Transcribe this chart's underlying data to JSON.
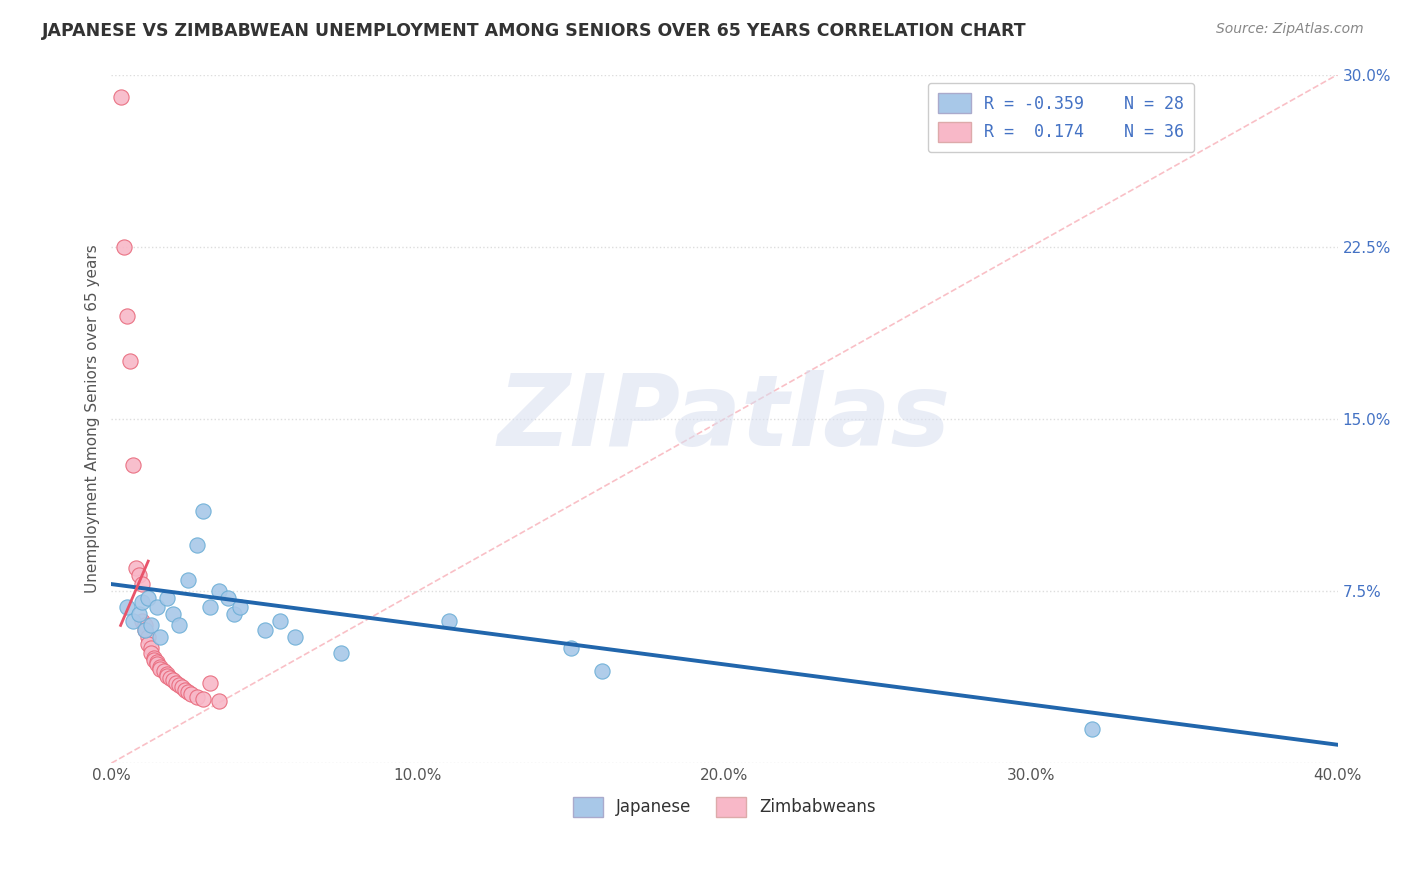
{
  "title": "JAPANESE VS ZIMBABWEAN UNEMPLOYMENT AMONG SENIORS OVER 65 YEARS CORRELATION CHART",
  "source": "Source: ZipAtlas.com",
  "ylabel": "Unemployment Among Seniors over 65 years",
  "xlim": [
    0.0,
    0.4
  ],
  "ylim": [
    0.0,
    0.3
  ],
  "xticks": [
    0.0,
    0.05,
    0.1,
    0.15,
    0.2,
    0.25,
    0.3,
    0.35,
    0.4
  ],
  "xticklabels_show": [
    0.0,
    0.1,
    0.2,
    0.3,
    0.4
  ],
  "yticks": [
    0.0,
    0.075,
    0.15,
    0.225,
    0.3
  ],
  "yticklabels": [
    "",
    "7.5%",
    "15.0%",
    "22.5%",
    "30.0%"
  ],
  "japanese_color": "#a8c8e8",
  "japanese_edge_color": "#6baed6",
  "zimbabwean_color": "#f8b8c8",
  "zimbabwean_edge_color": "#e8687a",
  "trend_japanese_color": "#2166ac",
  "trend_zimbabwean_color": "#e8536a",
  "ref_line_color": "#f8b0b8",
  "watermark_text": "ZIPatlas",
  "japanese_points": [
    [
      0.005,
      0.068
    ],
    [
      0.007,
      0.062
    ],
    [
      0.009,
      0.065
    ],
    [
      0.01,
      0.07
    ],
    [
      0.011,
      0.058
    ],
    [
      0.012,
      0.072
    ],
    [
      0.013,
      0.06
    ],
    [
      0.015,
      0.068
    ],
    [
      0.016,
      0.055
    ],
    [
      0.018,
      0.072
    ],
    [
      0.02,
      0.065
    ],
    [
      0.022,
      0.06
    ],
    [
      0.025,
      0.08
    ],
    [
      0.028,
      0.095
    ],
    [
      0.03,
      0.11
    ],
    [
      0.032,
      0.068
    ],
    [
      0.035,
      0.075
    ],
    [
      0.038,
      0.072
    ],
    [
      0.04,
      0.065
    ],
    [
      0.042,
      0.068
    ],
    [
      0.05,
      0.058
    ],
    [
      0.055,
      0.062
    ],
    [
      0.06,
      0.055
    ],
    [
      0.075,
      0.048
    ],
    [
      0.11,
      0.062
    ],
    [
      0.15,
      0.05
    ],
    [
      0.16,
      0.04
    ],
    [
      0.32,
      0.015
    ]
  ],
  "zimbabwean_points": [
    [
      0.003,
      0.29
    ],
    [
      0.004,
      0.225
    ],
    [
      0.005,
      0.195
    ],
    [
      0.006,
      0.175
    ],
    [
      0.007,
      0.13
    ],
    [
      0.008,
      0.085
    ],
    [
      0.009,
      0.082
    ],
    [
      0.01,
      0.078
    ],
    [
      0.01,
      0.062
    ],
    [
      0.011,
      0.06
    ],
    [
      0.011,
      0.058
    ],
    [
      0.012,
      0.055
    ],
    [
      0.012,
      0.052
    ],
    [
      0.013,
      0.05
    ],
    [
      0.013,
      0.048
    ],
    [
      0.014,
      0.046
    ],
    [
      0.014,
      0.045
    ],
    [
      0.015,
      0.044
    ],
    [
      0.015,
      0.043
    ],
    [
      0.016,
      0.042
    ],
    [
      0.016,
      0.041
    ],
    [
      0.017,
      0.04
    ],
    [
      0.018,
      0.039
    ],
    [
      0.018,
      0.038
    ],
    [
      0.019,
      0.037
    ],
    [
      0.02,
      0.036
    ],
    [
      0.021,
      0.035
    ],
    [
      0.022,
      0.034
    ],
    [
      0.023,
      0.033
    ],
    [
      0.024,
      0.032
    ],
    [
      0.025,
      0.031
    ],
    [
      0.026,
      0.03
    ],
    [
      0.028,
      0.029
    ],
    [
      0.03,
      0.028
    ],
    [
      0.032,
      0.035
    ],
    [
      0.035,
      0.027
    ]
  ],
  "japanese_trend_x": [
    0.0,
    0.4
  ],
  "japanese_trend_y": [
    0.078,
    0.008
  ],
  "zimbabwean_trend_x": [
    0.003,
    0.012
  ],
  "zimbabwean_trend_y": [
    0.06,
    0.088
  ],
  "ref_line_x": [
    0.0,
    0.4
  ],
  "ref_line_y": [
    0.0,
    0.4
  ]
}
